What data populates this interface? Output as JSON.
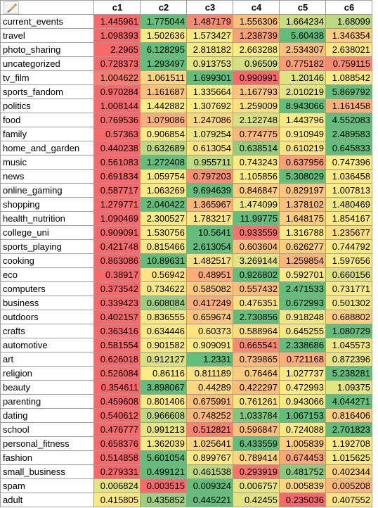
{
  "toolbar": {
    "format_icon": "paintbrush-icon"
  },
  "columns": [
    "c1",
    "c2",
    "c3",
    "c4",
    "c5",
    "c6"
  ],
  "colors": {
    "low": "#f8696b",
    "mid": "#ffeb84",
    "high": "#63be7b"
  },
  "rows": [
    {
      "label": "current_events",
      "values": [
        "1.445961",
        "1.775044",
        "1.487179",
        "1.556306",
        "1.664234",
        "1.68099"
      ]
    },
    {
      "label": "travel",
      "values": [
        "1.098393",
        "1.502636",
        "1.573427",
        "1.238739",
        "5.60438",
        "1.346354"
      ]
    },
    {
      "label": "photo_sharing",
      "values": [
        "2.2965",
        "6.128295",
        "2.818182",
        "2.663288",
        "2.534307",
        "2.638021"
      ]
    },
    {
      "label": "uncategorized",
      "values": [
        "0.728373",
        "1.293497",
        "0.913753",
        "0.96509",
        "0.775182",
        "0.759115"
      ]
    },
    {
      "label": "tv_film",
      "values": [
        "1.004622",
        "1.061511",
        "1.699301",
        "0.990991",
        "1.20146",
        "1.088542"
      ]
    },
    {
      "label": "sports_fandom",
      "values": [
        "0.970284",
        "1.161687",
        "1.335664",
        "1.167793",
        "2.010219",
        "5.869792"
      ]
    },
    {
      "label": "politics",
      "values": [
        "1.008144",
        "1.442882",
        "1.307692",
        "1.259009",
        "8.943066",
        "1.161458"
      ]
    },
    {
      "label": "food",
      "values": [
        "0.769536",
        "1.079086",
        "1.247086",
        "2.122748",
        "1.443796",
        "4.552083"
      ]
    },
    {
      "label": "family",
      "values": [
        "0.57363",
        "0.906854",
        "1.079254",
        "0.774775",
        "0.910949",
        "2.489583"
      ]
    },
    {
      "label": "home_and_garden",
      "values": [
        "0.440238",
        "0.632689",
        "0.613054",
        "0.638514",
        "0.610219",
        "0.645833"
      ]
    },
    {
      "label": "music",
      "values": [
        "0.561083",
        "1.272408",
        "0.955711",
        "0.743243",
        "0.637956",
        "0.747396"
      ]
    },
    {
      "label": "news",
      "values": [
        "0.691834",
        "1.059754",
        "0.797203",
        "1.105856",
        "5.308029",
        "1.036458"
      ]
    },
    {
      "label": "online_gaming",
      "values": [
        "0.587717",
        "1.063269",
        "9.694639",
        "0.846847",
        "0.829197",
        "1.007813"
      ]
    },
    {
      "label": "shopping",
      "values": [
        "1.279771",
        "2.040422",
        "1.365967",
        "1.474099",
        "1.378102",
        "1.480469"
      ]
    },
    {
      "label": "health_nutrition",
      "values": [
        "1.090469",
        "2.300527",
        "1.783217",
        "11.99775",
        "1.648175",
        "1.854167"
      ]
    },
    {
      "label": "college_uni",
      "values": [
        "0.909091",
        "1.530756",
        "10.5641",
        "0.933559",
        "1.316788",
        "1.235677"
      ]
    },
    {
      "label": "sports_playing",
      "values": [
        "0.421748",
        "0.815466",
        "2.613054",
        "0.603604",
        "0.626277",
        "0.744792"
      ]
    },
    {
      "label": "cooking",
      "values": [
        "0.863086",
        "10.89631",
        "1.482517",
        "3.269144",
        "1.259854",
        "1.597656"
      ]
    },
    {
      "label": "eco",
      "values": [
        "0.38917",
        "0.56942",
        "0.48951",
        "0.926802",
        "0.592701",
        "0.660156"
      ]
    },
    {
      "label": "computers",
      "values": [
        "0.373542",
        "0.734622",
        "0.585082",
        "0.557432",
        "2.471533",
        "0.731771"
      ]
    },
    {
      "label": "business",
      "values": [
        "0.339423",
        "0.608084",
        "0.417249",
        "0.476351",
        "0.672993",
        "0.501302"
      ]
    },
    {
      "label": "outdoors",
      "values": [
        "0.402157",
        "0.836555",
        "0.659674",
        "2.730856",
        "0.918248",
        "0.688802"
      ]
    },
    {
      "label": "crafts",
      "values": [
        "0.363416",
        "0.634446",
        "0.60373",
        "0.588964",
        "0.645255",
        "1.080729"
      ]
    },
    {
      "label": "automotive",
      "values": [
        "0.581554",
        "0.901582",
        "0.909091",
        "0.665541",
        "2.338686",
        "1.045573"
      ]
    },
    {
      "label": "art",
      "values": [
        "0.626018",
        "0.912127",
        "1.2331",
        "0.739865",
        "0.721168",
        "0.872396"
      ]
    },
    {
      "label": "religion",
      "values": [
        "0.526084",
        "0.86116",
        "0.811189",
        "0.76464",
        "1.027737",
        "5.238281"
      ]
    },
    {
      "label": "beauty",
      "values": [
        "0.354611",
        "3.898067",
        "0.44289",
        "0.422297",
        "0.472993",
        "1.09375"
      ]
    },
    {
      "label": "parenting",
      "values": [
        "0.459608",
        "0.801406",
        "0.675991",
        "0.761261",
        "0.943066",
        "4.044271"
      ]
    },
    {
      "label": "dating",
      "values": [
        "0.540612",
        "0.966608",
        "0.748252",
        "1.033784",
        "1.067153",
        "0.816406"
      ]
    },
    {
      "label": "school",
      "values": [
        "0.476777",
        "0.991213",
        "0.512821",
        "0.596847",
        "0.724088",
        "2.701823"
      ]
    },
    {
      "label": "personal_fitness",
      "values": [
        "0.658376",
        "1.362039",
        "1.025641",
        "6.433559",
        "1.005839",
        "1.192708"
      ]
    },
    {
      "label": "fashion",
      "values": [
        "0.514858",
        "5.601054",
        "0.899767",
        "0.789414",
        "0.674453",
        "1.015625"
      ]
    },
    {
      "label": "small_business",
      "values": [
        "0.279331",
        "0.499121",
        "0.461538",
        "0.293919",
        "0.481752",
        "0.402344"
      ]
    },
    {
      "label": "spam",
      "values": [
        "0.006824",
        "0.003515",
        "0.009324",
        "0.006757",
        "0.005839",
        "0.005208"
      ]
    },
    {
      "label": "adult",
      "values": [
        "0.415805",
        "0.435852",
        "0.445221",
        "0.42455",
        "0.235036",
        "0.407552"
      ]
    }
  ]
}
